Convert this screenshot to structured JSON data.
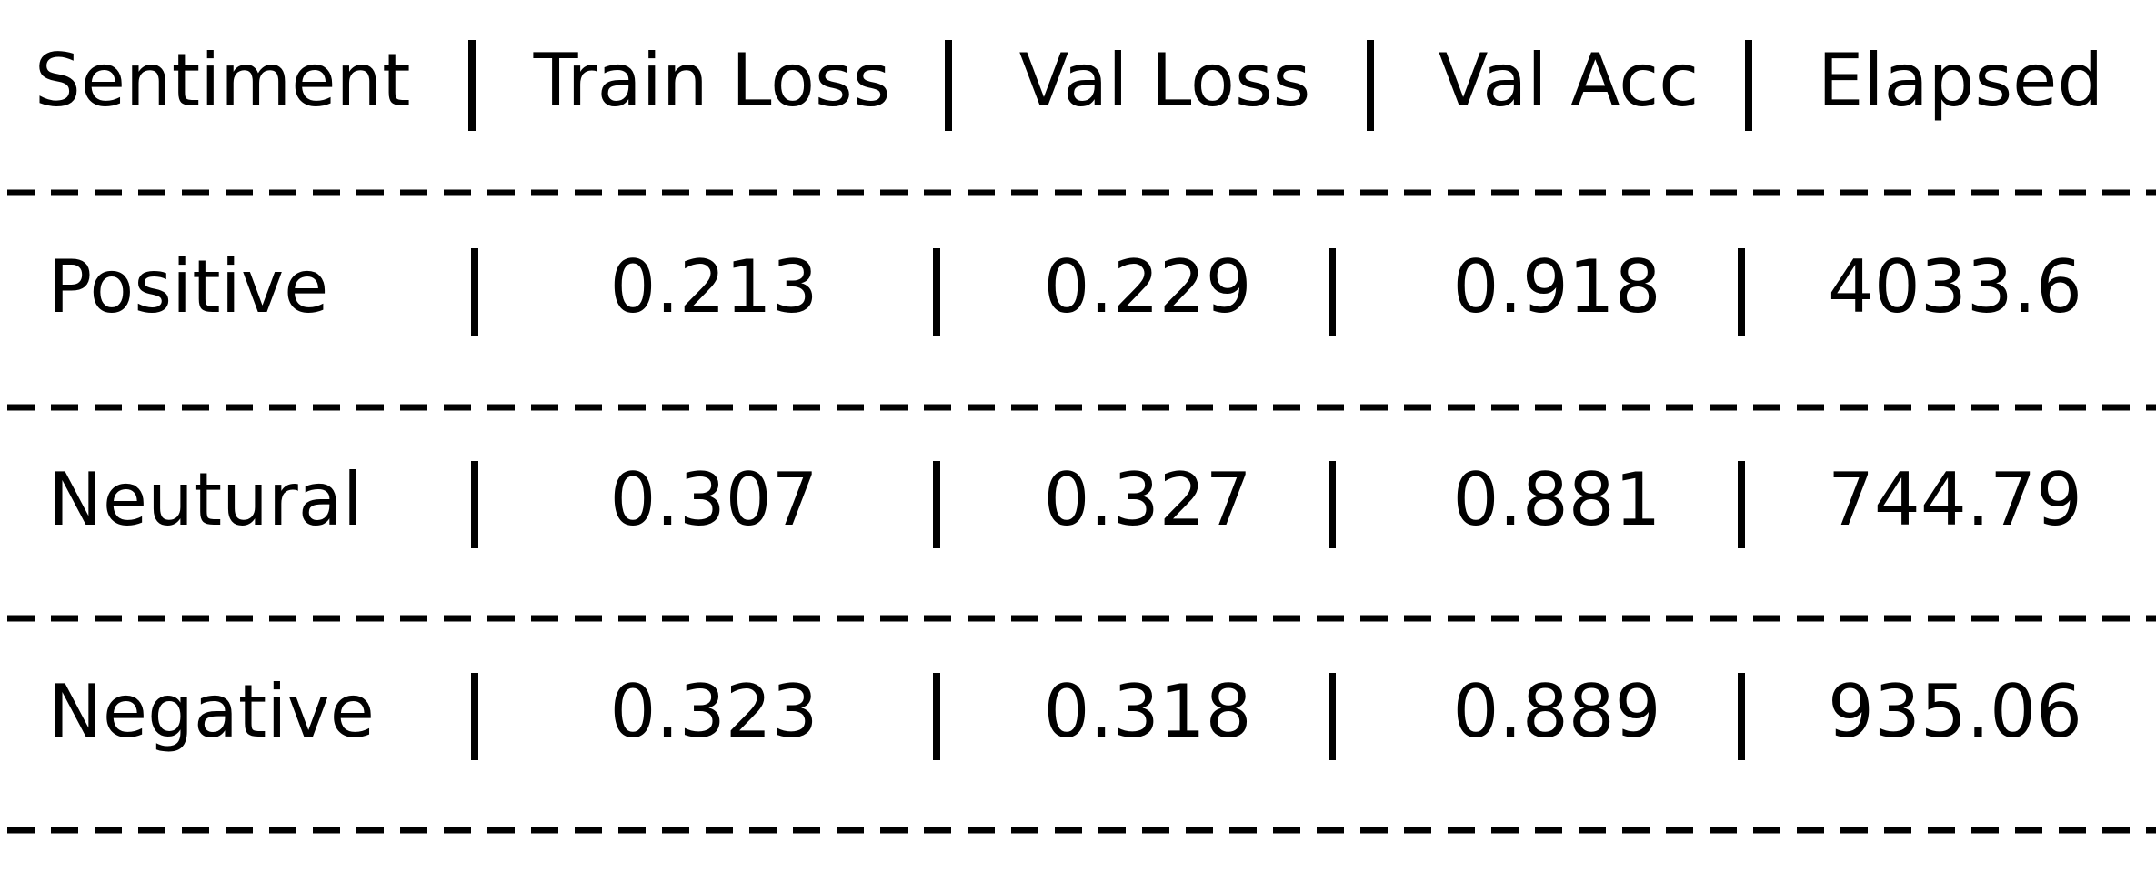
{
  "table": {
    "header": [
      "Sentiment",
      "Train Loss",
      "Val Loss",
      "Val Acc",
      "Elapsed"
    ],
    "rows": [
      [
        "Positive",
        0.213,
        0.229,
        0.918,
        4033.6
      ],
      [
        "Neutural",
        0.307,
        0.327,
        0.881,
        744.79
      ],
      [
        "Negative",
        0.323,
        0.318,
        0.889,
        935.06
      ]
    ]
  }
}
